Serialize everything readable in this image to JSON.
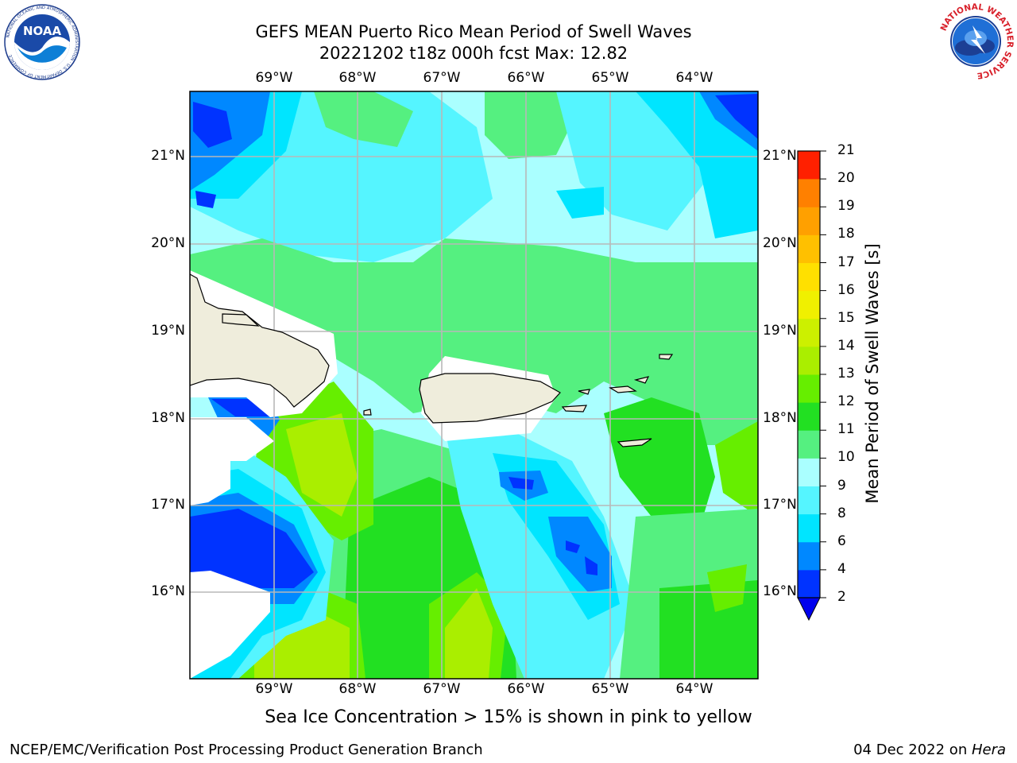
{
  "title": {
    "line1": "GEFS MEAN Puerto Rico Mean Period of Swell Waves",
    "line2": "20221202 t18z 000h fcst   Max: 12.82"
  },
  "logos": {
    "left": "NOAA",
    "left_ring": "NATIONAL OCEANIC AND ATMOSPHERIC ADMINISTRATION · U.S. DEPARTMENT OF COMMERCE",
    "right_ring": "NATIONAL WEATHER SERVICE"
  },
  "axes": {
    "lon_labels": [
      "69°W",
      "68°W",
      "67°W",
      "66°W",
      "65°W",
      "64°W"
    ],
    "lat_labels": [
      "21°N",
      "20°N",
      "19°N",
      "18°N",
      "17°N",
      "16°N"
    ]
  },
  "colorbar": {
    "title": "Mean Period of Swell Waves [s]",
    "levels": [
      2,
      4,
      6,
      8,
      9,
      10,
      11,
      12,
      13,
      14,
      15,
      16,
      17,
      18,
      19,
      20,
      21
    ],
    "labels": [
      "2",
      "4",
      "6",
      "8",
      "9",
      "10",
      "11",
      "12",
      "13",
      "14",
      "15",
      "16",
      "17",
      "18",
      "19",
      "20",
      "21"
    ],
    "colors": [
      "#0033ff",
      "#0088ff",
      "#00e5ff",
      "#55f5ff",
      "#aaffff",
      "#55f080",
      "#22e022",
      "#66ee00",
      "#aaee00",
      "#ccf000",
      "#f0f000",
      "#ffe000",
      "#ffc000",
      "#ffa000",
      "#ff8000",
      "#ff5000",
      "#ff2000"
    ],
    "under_color": "#0000ee"
  },
  "map_colors": {
    "land": "#efeddc",
    "no_data": "#ffffff",
    "grid": "#b8b8b8"
  },
  "note": "Sea Ice Concentration > 15% is shown in pink to yellow",
  "footer": {
    "left": "NCEP/EMC/Verification Post Processing Product Generation Branch",
    "right_date": "04 Dec 2022 on ",
    "right_host": "Hera"
  }
}
